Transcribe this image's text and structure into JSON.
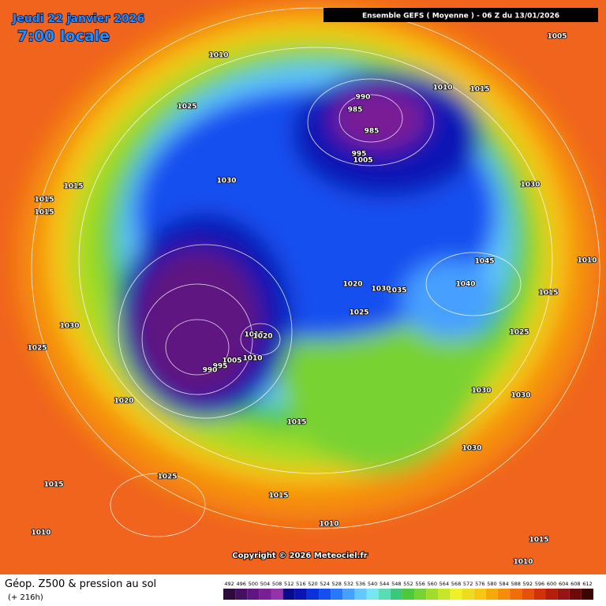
{
  "header": {
    "date": "Jeudi 22 janvier 2026",
    "time": "7:00 locale",
    "title": "Ensemble GEFS  ( Moyenne )  -  06 Z du 13/01/2026"
  },
  "copyright": "Copyright © 2026 Meteociel.fr",
  "footer": {
    "title": "Géop. Z500 & pression au sol",
    "lead": "(+ 216h)"
  },
  "scale": [
    492,
    496,
    500,
    504,
    508,
    512,
    516,
    520,
    524,
    528,
    532,
    536,
    540,
    544,
    548,
    552,
    556,
    560,
    564,
    568,
    572,
    576,
    580,
    584,
    588,
    592,
    596,
    600,
    604,
    608,
    612
  ],
  "scale_colors": [
    "#2d0a3c",
    "#461060",
    "#5f1680",
    "#7a1e96",
    "#9632aa",
    "#0a0a8c",
    "#0a14b4",
    "#0a32dc",
    "#1450f0",
    "#2878fa",
    "#46a0ff",
    "#64c8ff",
    "#78e6f0",
    "#5adcb4",
    "#3cc87a",
    "#50c83c",
    "#78d232",
    "#a0dc28",
    "#c8e628",
    "#f0f028",
    "#f0dc1e",
    "#f5c814",
    "#f5aa0a",
    "#f58c0a",
    "#f06e0a",
    "#e6500a",
    "#d2320a",
    "#b41e0a",
    "#961414",
    "#6e0a0a",
    "#3c0505"
  ],
  "isobar_labels": [
    1005,
    1010,
    1010,
    1015,
    990,
    985,
    985,
    995,
    1005,
    1025,
    1030,
    1030,
    1015,
    1015,
    1015,
    1045,
    1040,
    1010,
    1020,
    1035,
    1030,
    1015,
    1025,
    1025,
    1030,
    1025,
    1015,
    1020,
    1010,
    1005,
    995,
    990,
    1020,
    1015,
    1030,
    1030,
    1030,
    1015,
    1025,
    1015,
    1010,
    1010,
    1015,
    1010
  ]
}
